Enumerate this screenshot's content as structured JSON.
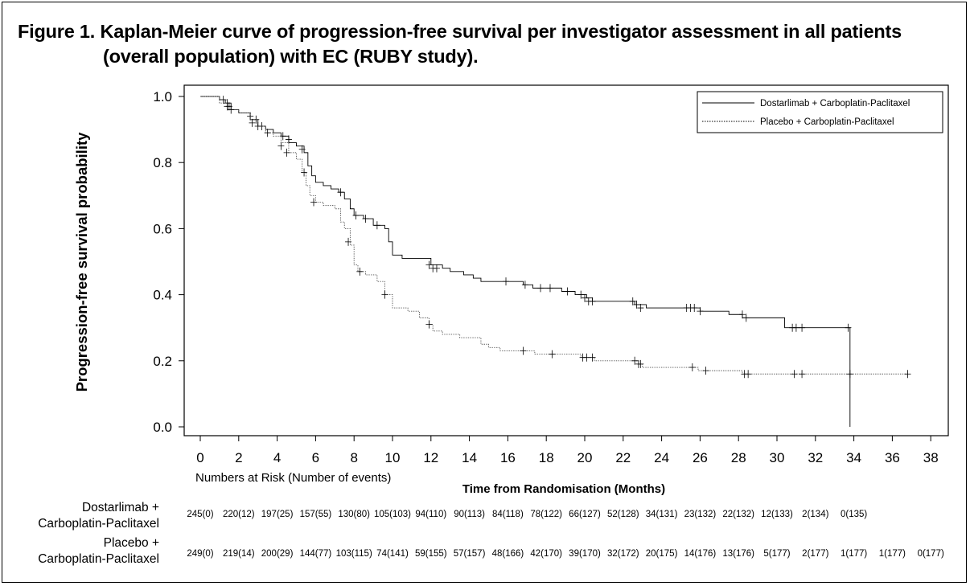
{
  "title": {
    "line1": "Figure 1. Kaplan-Meier curve of progression-free survival per investigator assessment in all patients",
    "line2": "(overall population) with EC (RUBY study)."
  },
  "colors": {
    "line": "#000000",
    "dashed": "#555555"
  },
  "chart_data": {
    "type": "line",
    "subtype": "kaplan-meier step",
    "xlabel": "Time from Randomisation (Months)",
    "ylabel": "Progression-free survival probability",
    "xlim": [
      0,
      38
    ],
    "ylim": [
      0,
      1.0
    ],
    "xticks": [
      0,
      2,
      4,
      6,
      8,
      10,
      12,
      14,
      16,
      18,
      20,
      22,
      24,
      26,
      28,
      30,
      32,
      34,
      36,
      38
    ],
    "yticks": [
      0.0,
      0.2,
      0.4,
      0.6,
      0.8,
      1.0
    ],
    "ytick_labels": [
      "0.0",
      "0.2",
      "0.4",
      "0.6",
      "0.8",
      "1.0"
    ],
    "grid": false,
    "legend_position": "top-right",
    "series": [
      {
        "name": "Dostarlimab + Carboplatin-Paclitaxel",
        "style": "solid",
        "steps": [
          [
            0,
            1.0
          ],
          [
            1.0,
            0.99
          ],
          [
            1.3,
            0.98
          ],
          [
            1.6,
            0.96
          ],
          [
            2.0,
            0.95
          ],
          [
            2.6,
            0.93
          ],
          [
            3.0,
            0.91
          ],
          [
            3.4,
            0.9
          ],
          [
            3.8,
            0.89
          ],
          [
            4.2,
            0.88
          ],
          [
            4.6,
            0.86
          ],
          [
            5.0,
            0.85
          ],
          [
            5.4,
            0.83
          ],
          [
            5.6,
            0.79
          ],
          [
            5.8,
            0.76
          ],
          [
            6.0,
            0.74
          ],
          [
            6.4,
            0.73
          ],
          [
            6.8,
            0.72
          ],
          [
            7.2,
            0.71
          ],
          [
            7.5,
            0.69
          ],
          [
            7.8,
            0.66
          ],
          [
            8.0,
            0.64
          ],
          [
            8.5,
            0.63
          ],
          [
            9.0,
            0.61
          ],
          [
            9.6,
            0.6
          ],
          [
            9.8,
            0.56
          ],
          [
            10.0,
            0.52
          ],
          [
            10.5,
            0.51
          ],
          [
            11.0,
            0.51
          ],
          [
            12.0,
            0.49
          ],
          [
            12.6,
            0.48
          ],
          [
            13.0,
            0.47
          ],
          [
            13.7,
            0.46
          ],
          [
            14.2,
            0.45
          ],
          [
            14.6,
            0.44
          ],
          [
            16.8,
            0.43
          ],
          [
            17.3,
            0.42
          ],
          [
            18.8,
            0.41
          ],
          [
            19.5,
            0.4
          ],
          [
            20.1,
            0.39
          ],
          [
            20.4,
            0.38
          ],
          [
            22.6,
            0.37
          ],
          [
            23.2,
            0.36
          ],
          [
            26.0,
            0.35
          ],
          [
            27.5,
            0.34
          ],
          [
            28.2,
            0.33
          ],
          [
            30.4,
            0.3
          ],
          [
            33.8,
            0.0
          ]
        ],
        "censor": [
          [
            1.2,
            0.99
          ],
          [
            1.4,
            0.98
          ],
          [
            1.5,
            0.97
          ],
          [
            2.6,
            0.94
          ],
          [
            2.9,
            0.93
          ],
          [
            3.2,
            0.91
          ],
          [
            4.3,
            0.88
          ],
          [
            4.6,
            0.87
          ],
          [
            5.3,
            0.84
          ],
          [
            7.3,
            0.71
          ],
          [
            8.1,
            0.64
          ],
          [
            8.6,
            0.63
          ],
          [
            9.2,
            0.61
          ],
          [
            11.9,
            0.49
          ],
          [
            12.1,
            0.48
          ],
          [
            12.3,
            0.48
          ],
          [
            15.9,
            0.44
          ],
          [
            16.9,
            0.43
          ],
          [
            17.7,
            0.42
          ],
          [
            18.2,
            0.42
          ],
          [
            19.1,
            0.41
          ],
          [
            19.8,
            0.4
          ],
          [
            20.0,
            0.39
          ],
          [
            20.2,
            0.38
          ],
          [
            20.4,
            0.38
          ],
          [
            22.5,
            0.38
          ],
          [
            22.7,
            0.37
          ],
          [
            22.9,
            0.36
          ],
          [
            25.3,
            0.36
          ],
          [
            25.5,
            0.36
          ],
          [
            25.7,
            0.36
          ],
          [
            26.0,
            0.35
          ],
          [
            28.2,
            0.34
          ],
          [
            28.4,
            0.33
          ],
          [
            30.8,
            0.3
          ],
          [
            31.0,
            0.3
          ],
          [
            31.3,
            0.3
          ],
          [
            33.7,
            0.3
          ]
        ]
      },
      {
        "name": "Placebo + Carboplatin-Paclitaxel",
        "style": "dotted",
        "steps": [
          [
            0,
            1.0
          ],
          [
            1.0,
            0.98
          ],
          [
            1.4,
            0.96
          ],
          [
            2.0,
            0.95
          ],
          [
            2.6,
            0.93
          ],
          [
            3.0,
            0.91
          ],
          [
            3.4,
            0.89
          ],
          [
            3.8,
            0.88
          ],
          [
            4.2,
            0.86
          ],
          [
            4.6,
            0.83
          ],
          [
            5.0,
            0.81
          ],
          [
            5.3,
            0.77
          ],
          [
            5.5,
            0.73
          ],
          [
            5.7,
            0.7
          ],
          [
            6.0,
            0.68
          ],
          [
            6.4,
            0.67
          ],
          [
            7.0,
            0.66
          ],
          [
            7.3,
            0.62
          ],
          [
            7.5,
            0.6
          ],
          [
            7.8,
            0.55
          ],
          [
            8.0,
            0.49
          ],
          [
            8.2,
            0.47
          ],
          [
            8.6,
            0.46
          ],
          [
            9.2,
            0.44
          ],
          [
            9.6,
            0.4
          ],
          [
            10.0,
            0.36
          ],
          [
            10.8,
            0.35
          ],
          [
            11.4,
            0.33
          ],
          [
            11.9,
            0.31
          ],
          [
            12.1,
            0.29
          ],
          [
            12.6,
            0.28
          ],
          [
            13.5,
            0.27
          ],
          [
            14.6,
            0.25
          ],
          [
            15.0,
            0.24
          ],
          [
            15.6,
            0.23
          ],
          [
            17.4,
            0.22
          ],
          [
            18.4,
            0.22
          ],
          [
            19.8,
            0.21
          ],
          [
            20.5,
            0.2
          ],
          [
            22.3,
            0.2
          ],
          [
            22.8,
            0.19
          ],
          [
            23.0,
            0.18
          ],
          [
            25.9,
            0.17
          ],
          [
            28.2,
            0.16
          ]
        ],
        "end_x": 36.8,
        "censor": [
          [
            1.4,
            0.97
          ],
          [
            1.6,
            0.96
          ],
          [
            2.7,
            0.92
          ],
          [
            3.0,
            0.91
          ],
          [
            3.5,
            0.89
          ],
          [
            4.2,
            0.85
          ],
          [
            4.5,
            0.83
          ],
          [
            5.4,
            0.77
          ],
          [
            5.9,
            0.68
          ],
          [
            7.7,
            0.56
          ],
          [
            8.3,
            0.47
          ],
          [
            9.6,
            0.4
          ],
          [
            11.9,
            0.31
          ],
          [
            16.8,
            0.23
          ],
          [
            18.3,
            0.22
          ],
          [
            19.9,
            0.21
          ],
          [
            20.1,
            0.21
          ],
          [
            20.4,
            0.21
          ],
          [
            22.6,
            0.2
          ],
          [
            22.8,
            0.19
          ],
          [
            22.9,
            0.19
          ],
          [
            25.6,
            0.18
          ],
          [
            26.3,
            0.17
          ],
          [
            28.3,
            0.16
          ],
          [
            28.5,
            0.16
          ],
          [
            30.9,
            0.16
          ],
          [
            31.3,
            0.16
          ],
          [
            33.8,
            0.16
          ],
          [
            36.8,
            0.16
          ]
        ]
      }
    ],
    "risk_table": {
      "caption": "Numbers at Risk (Number of events)",
      "rows": [
        {
          "label_line1": "Dostarlimab +",
          "label_line2": "Carboplatin-Paclitaxel",
          "values": [
            "245(0)",
            "220(12)",
            "197(25)",
            "157(55)",
            "130(80)",
            "105(103)",
            "94(110)",
            "90(113)",
            "84(118)",
            "78(122)",
            "66(127)",
            "52(128)",
            "34(131)",
            "23(132)",
            "22(132)",
            "12(133)",
            "2(134)",
            "0(135)"
          ]
        },
        {
          "label_line1": "Placebo +",
          "label_line2": "Carboplatin-Paclitaxel",
          "values": [
            "249(0)",
            "219(14)",
            "200(29)",
            "144(77)",
            "103(115)",
            "74(141)",
            "59(155)",
            "57(157)",
            "48(166)",
            "42(170)",
            "39(170)",
            "32(172)",
            "20(175)",
            "14(176)",
            "13(176)",
            "5(177)",
            "2(177)",
            "1(177)",
            "1(177)",
            "0(177)"
          ]
        }
      ]
    }
  }
}
